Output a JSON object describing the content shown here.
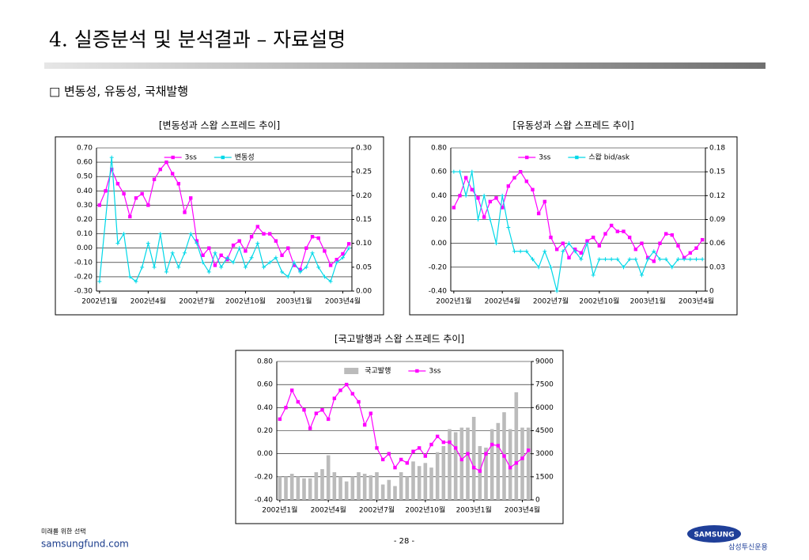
{
  "header": {
    "title": "4. 실증분석 및 분석결과 – 자료설명",
    "subtitle": "□ 변동성, 유동성, 국채발행"
  },
  "footer": {
    "tagline": "미래를 위한 선택",
    "site": "samsungfund.com",
    "page": "- 28 -",
    "brand": "SAMSUNG",
    "company": "삼성투신운용"
  },
  "chart_data": [
    {
      "type": "line",
      "title": "[변동성과 스왑 스프레드 추이]",
      "categories": [
        "2002년1월",
        null,
        null,
        null,
        null,
        null,
        null,
        null,
        "2002년4월",
        null,
        null,
        null,
        null,
        null,
        null,
        null,
        "2002년7월",
        null,
        null,
        null,
        null,
        null,
        null,
        null,
        "2002년10월",
        null,
        null,
        null,
        null,
        null,
        null,
        null,
        "2003년1월",
        null,
        null,
        null,
        null,
        null,
        null,
        null,
        "2003년4월",
        null
      ],
      "series": [
        {
          "name": "3ss",
          "color": "#ff00ff",
          "values": [
            0.3,
            0.4,
            0.55,
            0.45,
            0.38,
            0.22,
            0.35,
            0.38,
            0.3,
            0.48,
            0.55,
            0.6,
            0.52,
            0.45,
            0.25,
            0.35,
            0.05,
            -0.05,
            0.0,
            -0.12,
            -0.05,
            -0.08,
            0.02,
            0.05,
            -0.02,
            0.08,
            0.15,
            0.1,
            0.1,
            0.05,
            -0.05,
            0.0,
            -0.12,
            -0.15,
            0.0,
            0.08,
            0.07,
            -0.02,
            -0.12,
            -0.08,
            -0.04,
            0.03
          ]
        },
        {
          "name": "변동성",
          "color": "#00d8e8",
          "axis": "y2",
          "values": [
            0.02,
            0.15,
            0.28,
            0.1,
            0.12,
            0.03,
            0.02,
            0.05,
            0.1,
            0.05,
            0.12,
            0.04,
            0.08,
            0.05,
            0.08,
            0.12,
            0.1,
            0.06,
            0.04,
            0.08,
            0.05,
            0.07,
            0.06,
            0.09,
            0.05,
            0.07,
            0.1,
            0.05,
            0.06,
            0.07,
            0.04,
            0.03,
            0.06,
            0.04,
            0.05,
            0.08,
            0.05,
            0.03,
            0.02,
            0.06,
            0.07,
            0.09
          ]
        }
      ],
      "ylim": [
        -0.3,
        0.7
      ],
      "yticks": [
        {
          "value": -0.3,
          "label": "-0.30"
        },
        {
          "value": -0.2,
          "label": "-0.20"
        },
        {
          "value": -0.1,
          "label": "-0.10"
        },
        {
          "value": 0,
          "label": "0.00"
        },
        {
          "value": 0.1,
          "label": "0.10"
        },
        {
          "value": 0.2,
          "label": "0.20"
        },
        {
          "value": 0.3,
          "label": "0.30"
        },
        {
          "value": 0.4,
          "label": "0.40"
        },
        {
          "value": 0.5,
          "label": "0.50"
        },
        {
          "value": 0.6,
          "label": "0.60"
        },
        {
          "value": 0.7,
          "label": "0.70"
        }
      ],
      "y2lim": [
        0,
        0.3
      ],
      "y2ticks": [
        {
          "value": 0,
          "label": "0.00"
        },
        {
          "value": 0.05,
          "label": "0.05"
        },
        {
          "value": 0.1,
          "label": "0.10"
        },
        {
          "value": 0.15,
          "label": "0.15"
        },
        {
          "value": 0.2,
          "label": "0.20"
        },
        {
          "value": 0.25,
          "label": "0.25"
        },
        {
          "value": 0.3,
          "label": "0.30"
        }
      ],
      "grid": true
    },
    {
      "type": "line",
      "title": "[유동성과 스왑 스프레드 추이]",
      "categories": [
        "2002년1월",
        null,
        null,
        null,
        null,
        null,
        null,
        null,
        "2002년4월",
        null,
        null,
        null,
        null,
        null,
        null,
        null,
        "2002년7월",
        null,
        null,
        null,
        null,
        null,
        null,
        null,
        "2002년10월",
        null,
        null,
        null,
        null,
        null,
        null,
        null,
        "2003년1월",
        null,
        null,
        null,
        null,
        null,
        null,
        null,
        "2003년4월",
        null
      ],
      "series": [
        {
          "name": "3ss",
          "color": "#ff00ff",
          "values": [
            0.3,
            0.4,
            0.55,
            0.45,
            0.38,
            0.22,
            0.35,
            0.38,
            0.3,
            0.48,
            0.55,
            0.6,
            0.52,
            0.45,
            0.25,
            0.35,
            0.05,
            -0.05,
            0.0,
            -0.12,
            -0.05,
            -0.08,
            0.02,
            0.05,
            -0.02,
            0.08,
            0.15,
            0.1,
            0.1,
            0.05,
            -0.05,
            0.0,
            -0.12,
            -0.15,
            0.0,
            0.08,
            0.07,
            -0.02,
            -0.12,
            -0.08,
            -0.04,
            0.03
          ]
        },
        {
          "name": "스왑 bid/ask",
          "color": "#00d8e8",
          "axis": "y2",
          "values": [
            0.15,
            0.15,
            0.12,
            0.15,
            0.09,
            0.12,
            0.09,
            0.06,
            0.12,
            0.08,
            0.05,
            0.05,
            0.05,
            0.04,
            0.03,
            0.05,
            0.03,
            0.0,
            0.05,
            0.06,
            0.05,
            0.04,
            0.06,
            0.02,
            0.04,
            0.04,
            0.04,
            0.04,
            0.03,
            0.04,
            0.04,
            0.02,
            0.04,
            0.05,
            0.04,
            0.04,
            0.03,
            0.04,
            0.04,
            0.04,
            0.04,
            0.04
          ]
        }
      ],
      "ylim": [
        -0.4,
        0.8
      ],
      "yticks": [
        {
          "value": -0.4,
          "label": "-0.40"
        },
        {
          "value": -0.2,
          "label": "-0.20"
        },
        {
          "value": 0,
          "label": "0.00"
        },
        {
          "value": 0.2,
          "label": "0.20"
        },
        {
          "value": 0.4,
          "label": "0.40"
        },
        {
          "value": 0.6,
          "label": "0.60"
        },
        {
          "value": 0.8,
          "label": "0.80"
        }
      ],
      "y2lim": [
        0,
        0.18
      ],
      "y2ticks": [
        0,
        {
          "value": 0.03,
          "label": "0.03"
        },
        {
          "value": 0.06,
          "label": "0.06"
        },
        {
          "value": 0.09,
          "label": "0.09"
        },
        {
          "value": 0.12,
          "label": "0.12"
        },
        {
          "value": 0.15,
          "label": "0.15"
        },
        {
          "value": 0.18,
          "label": "0.18"
        }
      ],
      "grid": true
    },
    {
      "type": "combo",
      "title": "[국고발행과 스왑 스프레드 추이]",
      "categories": [
        "2002년1월",
        null,
        null,
        null,
        null,
        null,
        null,
        null,
        "2002년4월",
        null,
        null,
        null,
        null,
        null,
        null,
        null,
        "2002년7월",
        null,
        null,
        null,
        null,
        null,
        null,
        null,
        "2002년10월",
        null,
        null,
        null,
        null,
        null,
        null,
        null,
        "2003년1월",
        null,
        null,
        null,
        null,
        null,
        null,
        null,
        "2003년4월",
        null
      ],
      "series": [
        {
          "name": "국고발행",
          "color": "#bbbbbb",
          "axis": "y2",
          "type": "bar",
          "values": [
            1500,
            1500,
            1700,
            1500,
            1400,
            1400,
            1800,
            2000,
            2900,
            1800,
            1500,
            1200,
            1500,
            1800,
            1700,
            1600,
            1800,
            1000,
            1300,
            900,
            1800,
            1500,
            2500,
            2200,
            2400,
            2100,
            3100,
            3500,
            4600,
            4400,
            4700,
            4700,
            5400,
            3500,
            3400,
            4600,
            5000,
            5700,
            4600,
            7000,
            4700,
            4700
          ]
        },
        {
          "name": "3ss",
          "color": "#ff00ff",
          "type": "line",
          "values": [
            0.3,
            0.4,
            0.55,
            0.45,
            0.38,
            0.22,
            0.35,
            0.38,
            0.3,
            0.48,
            0.55,
            0.6,
            0.52,
            0.45,
            0.25,
            0.35,
            0.05,
            -0.05,
            0.0,
            -0.12,
            -0.05,
            -0.08,
            0.02,
            0.05,
            -0.02,
            0.08,
            0.15,
            0.1,
            0.1,
            0.05,
            -0.05,
            0.0,
            -0.12,
            -0.15,
            0.0,
            0.08,
            0.07,
            -0.02,
            -0.12,
            -0.08,
            -0.04,
            0.03
          ]
        }
      ],
      "ylim": [
        -0.4,
        0.8
      ],
      "yticks": [
        {
          "value": -0.4,
          "label": "-0.40"
        },
        {
          "value": -0.2,
          "label": "-0.20"
        },
        {
          "value": 0,
          "label": "0.00"
        },
        {
          "value": 0.2,
          "label": "0.20"
        },
        {
          "value": 0.4,
          "label": "0.40"
        },
        {
          "value": 0.6,
          "label": "0.60"
        },
        {
          "value": 0.8,
          "label": "0.80"
        }
      ],
      "y2lim": [
        0,
        9000
      ],
      "y2ticks": [
        0,
        1500,
        3000,
        4500,
        6000,
        7500,
        9000
      ],
      "grid": true
    }
  ]
}
